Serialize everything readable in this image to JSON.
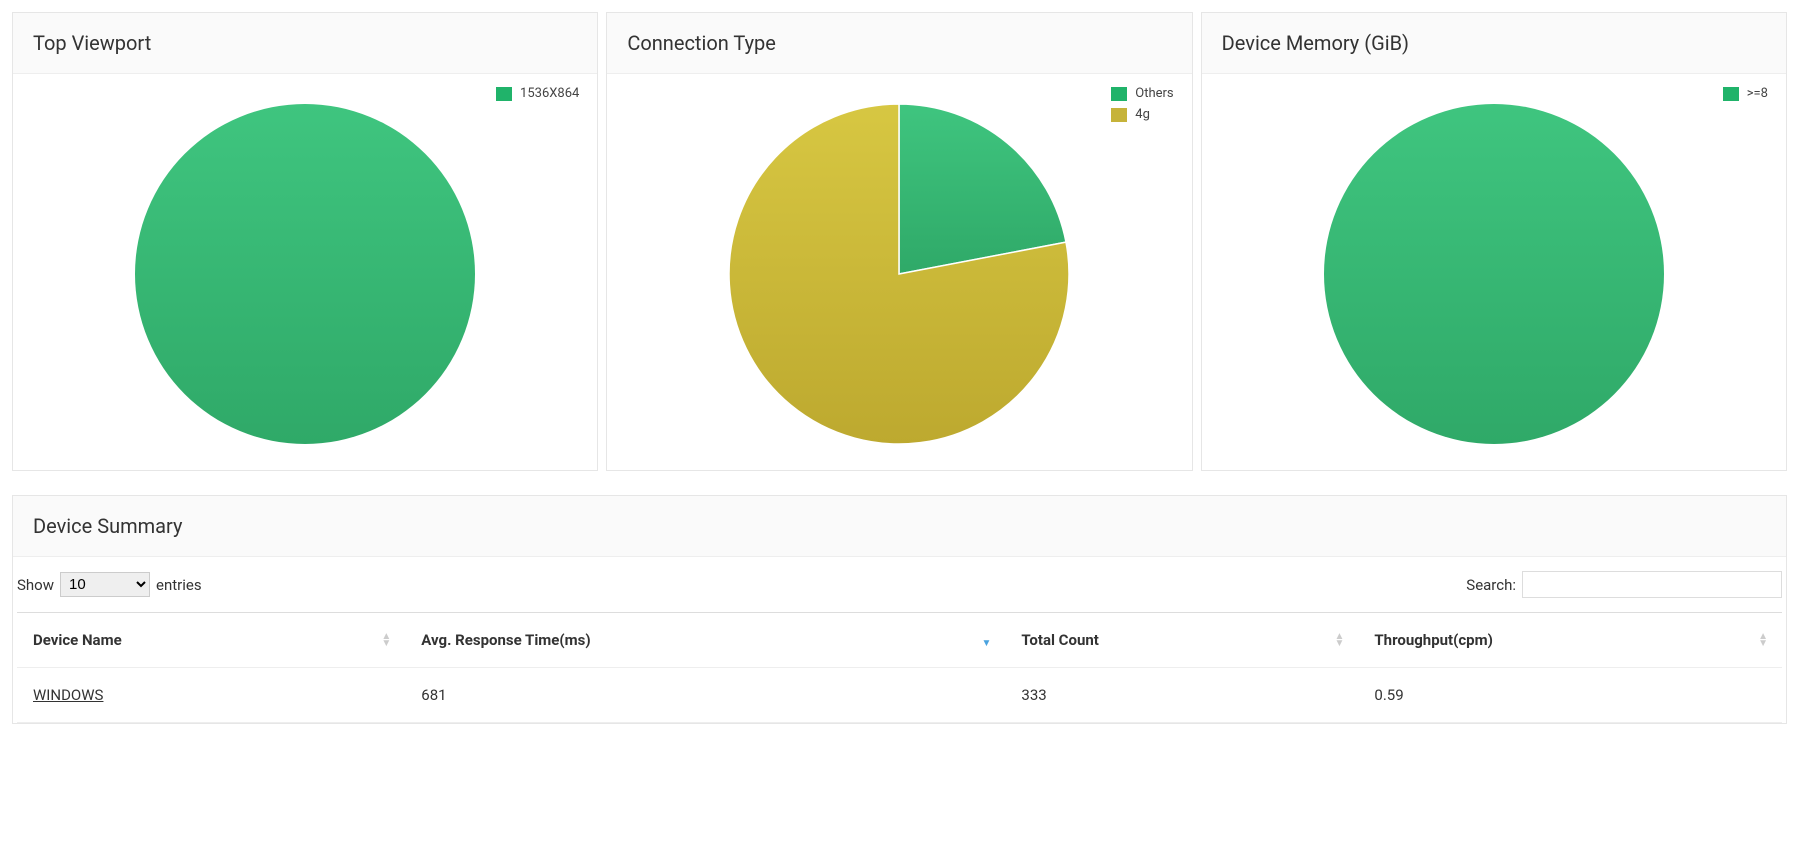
{
  "charts": [
    {
      "id": "viewport",
      "title": "Top Viewport",
      "type": "pie",
      "radius": 170,
      "background_color": "#ffffff",
      "slices": [
        {
          "label": "1536X864",
          "value": 100,
          "color_start": "#3fc57f",
          "color_end": "#2fa968"
        }
      ],
      "legend": [
        {
          "label": "1536X864",
          "color": "#20b36a"
        }
      ]
    },
    {
      "id": "connection",
      "title": "Connection Type",
      "type": "pie",
      "radius": 170,
      "background_color": "#ffffff",
      "slices": [
        {
          "label": "Others",
          "value": 22,
          "color_start": "#3fc57f",
          "color_end": "#2fa968"
        },
        {
          "label": "4g",
          "value": 78,
          "color_start": "#d7c742",
          "color_end": "#bda92f"
        }
      ],
      "legend": [
        {
          "label": "Others",
          "color": "#20b36a"
        },
        {
          "label": "4g",
          "color": "#c6b33a"
        }
      ]
    },
    {
      "id": "memory",
      "title": "Device Memory (GiB)",
      "type": "pie",
      "radius": 170,
      "background_color": "#ffffff",
      "slices": [
        {
          "label": ">=8",
          "value": 100,
          "color_start": "#3fc57f",
          "color_end": "#2fa968"
        }
      ],
      "legend": [
        {
          "label": ">=8",
          "color": "#20b36a"
        }
      ]
    }
  ],
  "summary": {
    "title": "Device Summary",
    "show_label_prefix": "Show",
    "show_label_suffix": "entries",
    "page_size_selected": "10",
    "page_size_options": [
      "10",
      "25",
      "50",
      "100"
    ],
    "search_label": "Search:",
    "search_value": "",
    "columns": [
      {
        "key": "device_name",
        "label": "Device Name",
        "width": "22%",
        "sort": "none"
      },
      {
        "key": "avg_resp",
        "label": "Avg. Response Time(ms)",
        "width": "34%",
        "sort": "desc"
      },
      {
        "key": "total_count",
        "label": "Total Count",
        "width": "20%",
        "sort": "none"
      },
      {
        "key": "throughput",
        "label": "Throughput(cpm)",
        "width": "24%",
        "sort": "none"
      }
    ],
    "rows": [
      {
        "device_name": "WINDOWS",
        "avg_resp": "681",
        "total_count": "333",
        "throughput": "0.59",
        "link": true
      }
    ]
  }
}
